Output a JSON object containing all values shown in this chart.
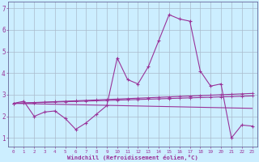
{
  "xlabel": "Windchill (Refroidissement éolien,°C)",
  "background_color": "#cceeff",
  "line_color": "#993399",
  "grid_color": "#aabbcc",
  "x_values": [
    0,
    1,
    2,
    3,
    4,
    5,
    6,
    7,
    8,
    9,
    10,
    11,
    12,
    13,
    14,
    15,
    16,
    17,
    18,
    19,
    20,
    21,
    22,
    23
  ],
  "series_main": [
    2.6,
    2.7,
    2.0,
    2.2,
    2.25,
    1.9,
    1.4,
    1.7,
    2.1,
    2.5,
    4.7,
    3.7,
    3.5,
    4.3,
    5.5,
    6.7,
    6.5,
    6.4,
    4.1,
    3.4,
    3.5,
    1.0,
    1.6,
    1.55
  ],
  "series_trend1": [
    2.6,
    2.62,
    2.64,
    2.66,
    2.68,
    2.7,
    2.72,
    2.74,
    2.76,
    2.78,
    2.8,
    2.82,
    2.84,
    2.86,
    2.88,
    2.9,
    2.92,
    2.94,
    2.96,
    2.98,
    3.0,
    3.02,
    3.04,
    3.06
  ],
  "series_trend2": [
    2.6,
    2.615,
    2.63,
    2.645,
    2.66,
    2.675,
    2.69,
    2.705,
    2.72,
    2.735,
    2.75,
    2.765,
    2.78,
    2.795,
    2.81,
    2.825,
    2.84,
    2.855,
    2.87,
    2.885,
    2.9,
    2.915,
    2.93,
    2.945
  ],
  "series_trend3": [
    2.6,
    2.59,
    2.58,
    2.57,
    2.56,
    2.55,
    2.54,
    2.53,
    2.52,
    2.51,
    2.5,
    2.49,
    2.48,
    2.47,
    2.46,
    2.45,
    2.44,
    2.43,
    2.42,
    2.41,
    2.4,
    2.39,
    2.38,
    2.37
  ],
  "ylim": [
    0.6,
    7.3
  ],
  "xlim": [
    -0.5,
    23.5
  ],
  "yticks": [
    1,
    2,
    3,
    4,
    5,
    6,
    7
  ],
  "xticks": [
    0,
    1,
    2,
    3,
    4,
    5,
    6,
    7,
    8,
    9,
    10,
    11,
    12,
    13,
    14,
    15,
    16,
    17,
    18,
    19,
    20,
    21,
    22,
    23
  ]
}
